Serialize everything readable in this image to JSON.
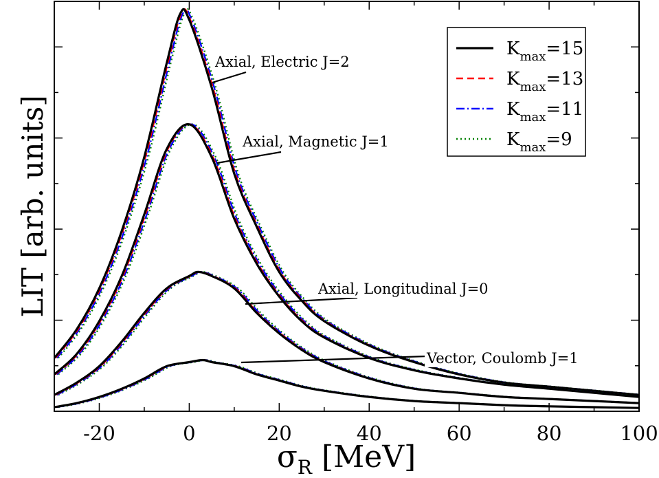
{
  "chart_data": {
    "type": "line",
    "title": "",
    "xlabel": "σ",
    "xlabel_sub": "R",
    "xlabel_unit": " [MeV]",
    "ylabel": "LIT [arb. units]",
    "xlim": [
      -30,
      100
    ],
    "ylim": [
      0,
      1
    ],
    "x_ticks": [
      -20,
      0,
      20,
      40,
      60,
      80,
      100
    ],
    "x_tick_labels": [
      "-20",
      "0",
      "20",
      "40",
      "60",
      "80",
      "100"
    ],
    "y_tick_labels": [],
    "grid": false,
    "legend": {
      "position": "top-right",
      "entries": [
        {
          "prefix": "K",
          "sub": "max",
          "suffix": "=15",
          "color": "#000000",
          "style": "solid"
        },
        {
          "prefix": "K",
          "sub": "max",
          "suffix": "=13",
          "color": "#ff0000",
          "style": "dashed"
        },
        {
          "prefix": "K",
          "sub": "max",
          "suffix": "=11",
          "color": "#0000ff",
          "style": "dashdot"
        },
        {
          "prefix": "K",
          "sub": "max",
          "suffix": "=9",
          "color": "#008000",
          "style": "dotted"
        }
      ]
    },
    "series": [
      {
        "name": "Axial, Electric J=2",
        "x": [
          -30,
          -25,
          -20,
          -15,
          -10,
          -5,
          -2,
          0,
          5,
          10,
          15,
          20,
          25,
          30,
          40,
          50,
          60,
          70,
          80,
          90,
          100
        ],
        "y": [
          0.13,
          0.2,
          0.3,
          0.44,
          0.62,
          0.85,
          0.97,
          0.955,
          0.79,
          0.58,
          0.45,
          0.34,
          0.27,
          0.22,
          0.16,
          0.12,
          0.09,
          0.07,
          0.06,
          0.05,
          0.04
        ]
      },
      {
        "name": "Axial, Magnetic J=1",
        "x": [
          -30,
          -25,
          -20,
          -15,
          -10,
          -5,
          0,
          5,
          10,
          15,
          20,
          25,
          30,
          40,
          50,
          60,
          70,
          80,
          90,
          100
        ],
        "y": [
          0.09,
          0.14,
          0.22,
          0.33,
          0.48,
          0.64,
          0.7,
          0.62,
          0.47,
          0.36,
          0.28,
          0.22,
          0.18,
          0.13,
          0.1,
          0.08,
          0.065,
          0.055,
          0.045,
          0.035
        ]
      },
      {
        "name": "Axial, Longitudinal J=0",
        "x": [
          -30,
          -25,
          -20,
          -15,
          -10,
          -5,
          0,
          2,
          5,
          10,
          15,
          20,
          25,
          30,
          40,
          50,
          60,
          70,
          80,
          90,
          100
        ],
        "y": [
          0.04,
          0.07,
          0.11,
          0.17,
          0.24,
          0.3,
          0.33,
          0.34,
          0.33,
          0.3,
          0.24,
          0.19,
          0.15,
          0.12,
          0.08,
          0.055,
          0.045,
          0.035,
          0.03,
          0.025,
          0.02
        ]
      },
      {
        "name": "Vector, Coulomb J=1",
        "x": [
          -30,
          -25,
          -20,
          -15,
          -10,
          -5,
          0,
          3,
          5,
          10,
          15,
          20,
          25,
          30,
          40,
          50,
          60,
          70,
          80,
          90,
          100
        ],
        "y": [
          0.01,
          0.02,
          0.035,
          0.055,
          0.08,
          0.11,
          0.12,
          0.125,
          0.12,
          0.11,
          0.09,
          0.075,
          0.06,
          0.05,
          0.035,
          0.025,
          0.02,
          0.015,
          0.012,
          0.01,
          0.008
        ]
      }
    ],
    "annotations": [
      {
        "text": "Axial, Electric J=2",
        "target": "Axial, Electric J=2"
      },
      {
        "text": "Axial, Magnetic J=1",
        "target": "Axial, Magnetic J=1"
      },
      {
        "text": "Axial, Longitudinal J=0",
        "target": "Axial, Longitudinal J=0"
      },
      {
        "text": "Vector, Coulomb J=1",
        "target": "Vector, Coulomb J=1"
      }
    ]
  }
}
